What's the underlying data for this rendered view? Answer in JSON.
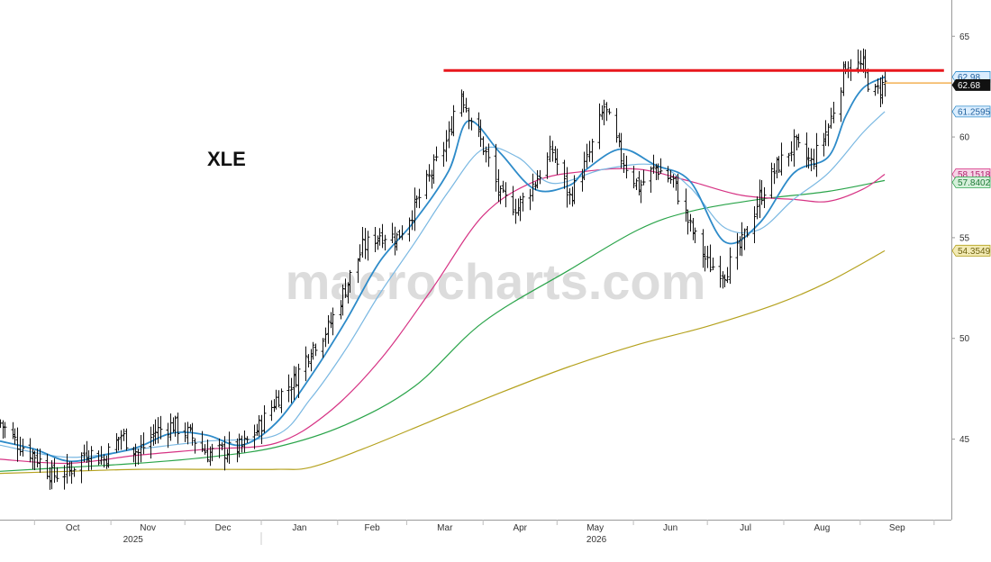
{
  "chart_data": {
    "type": "line",
    "title": "XLE",
    "watermark": "macrocharts.com",
    "xlabel": "",
    "ylabel": "",
    "ylim": [
      41.0,
      66.8
    ],
    "y_ticks": [
      45,
      50,
      55,
      60,
      65
    ],
    "grid": false,
    "month_labels": [
      "Oct",
      "Nov",
      "Dec",
      "Jan",
      "Feb",
      "Mar",
      "Apr",
      "May",
      "Jun",
      "Jul",
      "Aug",
      "Sep"
    ],
    "year_labels": [
      "2025",
      "2026"
    ],
    "x_range": [
      "2025-09-17",
      "2026-10-08"
    ],
    "price_anchors": [
      [
        "2025-09-17",
        45.8
      ],
      [
        "2025-09-24",
        44.8
      ],
      [
        "2025-10-01",
        44.2
      ],
      [
        "2025-10-08",
        43.2
      ],
      [
        "2025-10-15",
        43.4
      ],
      [
        "2025-10-22",
        44.4
      ],
      [
        "2025-10-29",
        44.0
      ],
      [
        "2025-11-05",
        45.2
      ],
      [
        "2025-11-12",
        44.3
      ],
      [
        "2025-11-19",
        45.4
      ],
      [
        "2025-11-26",
        45.7
      ],
      [
        "2025-12-03",
        45.2
      ],
      [
        "2025-12-10",
        44.3
      ],
      [
        "2025-12-17",
        44.4
      ],
      [
        "2025-12-24",
        44.6
      ],
      [
        "2025-12-31",
        45.6
      ],
      [
        "2026-01-07",
        47.0
      ],
      [
        "2026-01-14",
        47.9
      ],
      [
        "2026-01-21",
        49.5
      ],
      [
        "2026-01-28",
        50.5
      ],
      [
        "2026-02-04",
        52.5
      ],
      [
        "2026-02-11",
        54.5
      ],
      [
        "2026-02-18",
        55.2
      ],
      [
        "2026-02-25",
        55.0
      ],
      [
        "2026-03-04",
        56.5
      ],
      [
        "2026-03-11",
        58.2
      ],
      [
        "2026-03-18",
        60.0
      ],
      [
        "2026-03-22",
        62.6
      ],
      [
        "2026-03-26",
        61.2
      ],
      [
        "2026-04-01",
        59.5
      ],
      [
        "2026-04-08",
        57.0
      ],
      [
        "2026-04-15",
        56.5
      ],
      [
        "2026-04-22",
        57.8
      ],
      [
        "2026-04-29",
        59.3
      ],
      [
        "2026-05-06",
        57.0
      ],
      [
        "2026-05-13",
        58.8
      ],
      [
        "2026-05-20",
        61.5
      ],
      [
        "2026-05-27",
        59.0
      ],
      [
        "2026-06-03",
        57.5
      ],
      [
        "2026-06-10",
        58.5
      ],
      [
        "2026-06-17",
        57.8
      ],
      [
        "2026-06-24",
        55.5
      ],
      [
        "2026-07-01",
        53.7
      ],
      [
        "2026-07-08",
        53.3
      ],
      [
        "2026-07-15",
        54.7
      ],
      [
        "2026-07-22",
        57.0
      ],
      [
        "2026-07-29",
        58.5
      ],
      [
        "2026-08-05",
        59.6
      ],
      [
        "2026-08-12",
        58.7
      ],
      [
        "2026-08-19",
        60.5
      ],
      [
        "2026-08-26",
        63.6
      ],
      [
        "2026-09-02",
        63.5
      ],
      [
        "2026-09-06",
        62.0
      ],
      [
        "2026-09-11",
        62.7
      ]
    ],
    "horizontal_lines": [
      {
        "name": "resistance",
        "y": 63.3,
        "x_start": "2026-03-16",
        "x_end": "2026-10-05",
        "color": "#e8171c"
      },
      {
        "name": "last-price-line",
        "y": 62.68,
        "x_start": "2026-09-11",
        "x_end": "2026-10-08",
        "color": "#f0a030"
      }
    ],
    "series": [
      {
        "id": "ma-short",
        "color": "#2e8bc9",
        "width": 1.8,
        "points": [
          [
            "2025-09-17",
            44.9
          ],
          [
            "2025-10-01",
            44.5
          ],
          [
            "2025-10-15",
            43.9
          ],
          [
            "2025-10-29",
            44.2
          ],
          [
            "2025-11-12",
            44.6
          ],
          [
            "2025-11-26",
            45.3
          ],
          [
            "2025-12-10",
            45.2
          ],
          [
            "2025-12-24",
            44.7
          ],
          [
            "2026-01-07",
            45.8
          ],
          [
            "2026-01-21",
            48.1
          ],
          [
            "2026-02-04",
            50.8
          ],
          [
            "2026-02-18",
            53.8
          ],
          [
            "2026-03-04",
            55.8
          ],
          [
            "2026-03-18",
            58.3
          ],
          [
            "2026-03-26",
            60.8
          ],
          [
            "2026-04-08",
            59.2
          ],
          [
            "2026-04-22",
            57.4
          ],
          [
            "2026-05-06",
            57.6
          ],
          [
            "2026-05-13",
            58.4
          ],
          [
            "2026-05-27",
            59.4
          ],
          [
            "2026-06-10",
            58.6
          ],
          [
            "2026-06-24",
            57.8
          ],
          [
            "2026-07-08",
            54.8
          ],
          [
            "2026-07-22",
            55.7
          ],
          [
            "2026-08-05",
            58.2
          ],
          [
            "2026-08-19",
            59.0
          ],
          [
            "2026-08-26",
            61.0
          ],
          [
            "2026-09-02",
            62.4
          ],
          [
            "2026-09-11",
            62.98
          ]
        ]
      },
      {
        "id": "ma-medium",
        "color": "#7ab8e2",
        "width": 1.2,
        "points": [
          [
            "2025-09-17",
            44.7
          ],
          [
            "2025-10-15",
            44.1
          ],
          [
            "2025-11-12",
            44.5
          ],
          [
            "2025-12-10",
            44.9
          ],
          [
            "2026-01-07",
            45.2
          ],
          [
            "2026-01-21",
            47.0
          ],
          [
            "2026-02-04",
            49.4
          ],
          [
            "2026-02-18",
            52.2
          ],
          [
            "2026-03-04",
            54.7
          ],
          [
            "2026-03-18",
            57.3
          ],
          [
            "2026-04-01",
            59.4
          ],
          [
            "2026-04-15",
            59.0
          ],
          [
            "2026-04-29",
            57.7
          ],
          [
            "2026-05-20",
            58.4
          ],
          [
            "2026-06-10",
            58.6
          ],
          [
            "2026-06-24",
            57.5
          ],
          [
            "2026-07-08",
            55.5
          ],
          [
            "2026-07-22",
            55.4
          ],
          [
            "2026-08-05",
            56.9
          ],
          [
            "2026-08-19",
            58.2
          ],
          [
            "2026-09-02",
            60.2
          ],
          [
            "2026-09-11",
            61.26
          ]
        ]
      },
      {
        "id": "ma-50",
        "color": "#d63384",
        "width": 1.2,
        "points": [
          [
            "2025-09-17",
            44.0
          ],
          [
            "2025-10-15",
            43.8
          ],
          [
            "2025-11-12",
            44.2
          ],
          [
            "2025-12-10",
            44.5
          ],
          [
            "2026-01-07",
            44.8
          ],
          [
            "2026-01-28",
            46.3
          ],
          [
            "2026-02-18",
            48.9
          ],
          [
            "2026-03-11",
            52.4
          ],
          [
            "2026-04-01",
            56.1
          ],
          [
            "2026-04-22",
            57.8
          ],
          [
            "2026-05-13",
            58.3
          ],
          [
            "2026-06-03",
            58.4
          ],
          [
            "2026-06-24",
            57.8
          ],
          [
            "2026-07-15",
            57.1
          ],
          [
            "2026-08-05",
            56.9
          ],
          [
            "2026-08-19",
            56.8
          ],
          [
            "2026-09-02",
            57.4
          ],
          [
            "2026-09-11",
            58.15
          ]
        ]
      },
      {
        "id": "ma-100",
        "color": "#2aa44a",
        "width": 1.2,
        "points": [
          [
            "2025-09-17",
            43.4
          ],
          [
            "2025-10-15",
            43.6
          ],
          [
            "2025-11-12",
            43.8
          ],
          [
            "2025-12-10",
            44.1
          ],
          [
            "2026-01-07",
            44.6
          ],
          [
            "2026-02-04",
            45.7
          ],
          [
            "2026-03-04",
            47.6
          ],
          [
            "2026-04-01",
            50.8
          ],
          [
            "2026-05-06",
            53.4
          ],
          [
            "2026-06-03",
            55.4
          ],
          [
            "2026-06-24",
            56.3
          ],
          [
            "2026-07-22",
            56.9
          ],
          [
            "2026-08-19",
            57.3
          ],
          [
            "2026-09-11",
            57.84
          ]
        ]
      },
      {
        "id": "ma-200",
        "color": "#b5a21f",
        "width": 1.2,
        "points": [
          [
            "2025-09-17",
            43.3
          ],
          [
            "2025-10-15",
            43.4
          ],
          [
            "2025-11-12",
            43.5
          ],
          [
            "2025-12-10",
            43.5
          ],
          [
            "2026-01-07",
            43.5
          ],
          [
            "2026-01-21",
            43.6
          ],
          [
            "2026-02-11",
            44.5
          ],
          [
            "2026-03-11",
            45.9
          ],
          [
            "2026-04-08",
            47.3
          ],
          [
            "2026-05-06",
            48.6
          ],
          [
            "2026-06-03",
            49.7
          ],
          [
            "2026-07-01",
            50.6
          ],
          [
            "2026-07-29",
            51.7
          ],
          [
            "2026-08-19",
            52.8
          ],
          [
            "2026-09-11",
            54.35
          ]
        ]
      }
    ],
    "value_badges": [
      {
        "id": "badge-ma-short",
        "label": "62.98",
        "value": 62.98,
        "bg": "#dbeeff",
        "fg": "#1f5f9c",
        "border": "#2e8bc9"
      },
      {
        "id": "badge-last-price",
        "label": "62.68",
        "value": 62.68,
        "bg": "#111111",
        "fg": "#ffffff",
        "border": "#111111"
      },
      {
        "id": "badge-ma-medium",
        "label": "61.2595",
        "value": 61.2595,
        "bg": "#dbeeff",
        "fg": "#1f5f9c",
        "border": "#2e8bc9"
      },
      {
        "id": "badge-ma-50",
        "label": "58.1518",
        "value": 58.1518,
        "bg": "#f6d3e6",
        "fg": "#b0226c",
        "border": "#d63384"
      },
      {
        "id": "badge-ma-100",
        "label": "57.8402",
        "value": 57.8402,
        "bg": "#d5f0da",
        "fg": "#1f7a37",
        "border": "#2aa44a"
      },
      {
        "id": "badge-ma-200",
        "label": "54.3549",
        "value": 54.3549,
        "bg": "#f3ebb5",
        "fg": "#6e6210",
        "border": "#b5a21f"
      }
    ]
  }
}
